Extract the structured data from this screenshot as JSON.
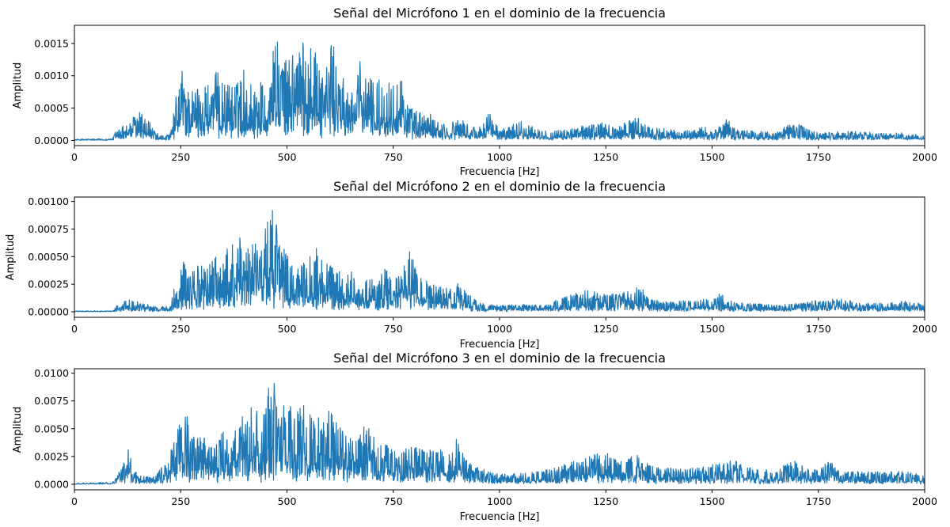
{
  "colors": {
    "line": "#1f77b4",
    "axes": "#000000",
    "background": "#ffffff"
  },
  "chart_data": [
    {
      "type": "line",
      "title": "Señal del Micrófono 1 en el dominio de la frecuencia",
      "xlabel": "Frecuencia [Hz]",
      "ylabel": "Amplitud",
      "xlim": [
        0,
        2000
      ],
      "ylim": [
        -8e-05,
        0.00178
      ],
      "grid": false,
      "x_ticks": [
        0,
        250,
        500,
        750,
        1000,
        1250,
        1500,
        1750,
        2000
      ],
      "x_tick_labels": [
        "0",
        "250",
        "500",
        "750",
        "1000",
        "1250",
        "1500",
        "1750",
        "2000"
      ],
      "y_ticks": [
        0,
        0.0005,
        0.001,
        0.0015
      ],
      "y_tick_labels": [
        "0.0000",
        "0.0005",
        "0.0010",
        "0.0015"
      ],
      "envelope": {
        "x": [
          0,
          90,
          100,
          130,
          150,
          175,
          200,
          225,
          240,
          255,
          265,
          290,
          310,
          335,
          360,
          385,
          400,
          420,
          440,
          460,
          480,
          500,
          520,
          545,
          565,
          585,
          605,
          625,
          645,
          665,
          690,
          705,
          725,
          745,
          765,
          785,
          800,
          835,
          850,
          880,
          900,
          930,
          950,
          975,
          1000,
          1050,
          1100,
          1150,
          1200,
          1250,
          1275,
          1320,
          1350,
          1400,
          1450,
          1480,
          1500,
          1535,
          1560,
          1600,
          1650,
          1690,
          1720,
          1750,
          1800,
          1850,
          1900,
          1950,
          2000
        ],
        "y": [
          2e-05,
          3e-05,
          0.0002,
          0.0003,
          0.00047,
          0.0003,
          7e-05,
          0.0001,
          0.00072,
          0.0012,
          0.0008,
          0.00085,
          0.0009,
          0.00108,
          0.00088,
          0.0009,
          0.00115,
          0.0008,
          0.00095,
          0.0014,
          0.00155,
          0.0012,
          0.00158,
          0.00165,
          0.00152,
          0.00118,
          0.00158,
          0.00108,
          0.0008,
          0.00128,
          0.00105,
          0.00093,
          0.00098,
          0.00095,
          0.0011,
          0.00055,
          0.00047,
          0.00042,
          0.00035,
          0.00022,
          0.00038,
          0.00025,
          0.00018,
          0.0005,
          0.00015,
          0.00032,
          0.00015,
          0.00016,
          0.00025,
          0.00028,
          0.0002,
          0.00038,
          0.00022,
          0.00017,
          0.00015,
          0.00025,
          0.00012,
          0.00035,
          0.00016,
          0.00015,
          0.00012,
          0.0003,
          0.0002,
          0.00012,
          0.00014,
          0.00014,
          0.00011,
          0.00012,
          8e-05
        ]
      }
    },
    {
      "type": "line",
      "title": "Señal del Micrófono 2 en el dominio de la frecuencia",
      "xlabel": "Frecuencia [Hz]",
      "ylabel": "Amplitud",
      "xlim": [
        0,
        2000
      ],
      "ylim": [
        -5e-05,
        0.00104
      ],
      "grid": false,
      "x_ticks": [
        0,
        250,
        500,
        750,
        1000,
        1250,
        1500,
        1750,
        2000
      ],
      "x_tick_labels": [
        "0",
        "250",
        "500",
        "750",
        "1000",
        "1250",
        "1500",
        "1750",
        "2000"
      ],
      "y_ticks": [
        0,
        0.00025,
        0.0005,
        0.00075,
        0.001
      ],
      "y_tick_labels": [
        "0.00000",
        "0.00025",
        "0.00050",
        "0.00075",
        "0.00100"
      ],
      "envelope": {
        "x": [
          0,
          90,
          100,
          130,
          150,
          175,
          200,
          225,
          240,
          255,
          270,
          290,
          310,
          330,
          350,
          370,
          385,
          400,
          420,
          440,
          460,
          470,
          490,
          510,
          530,
          550,
          570,
          590,
          610,
          630,
          650,
          670,
          690,
          710,
          730,
          750,
          770,
          790,
          810,
          830,
          850,
          880,
          900,
          930,
          950,
          980,
          1000,
          1050,
          1100,
          1150,
          1200,
          1250,
          1300,
          1330,
          1350,
          1400,
          1450,
          1500,
          1520,
          1550,
          1600,
          1650,
          1700,
          1750,
          1800,
          1850,
          1900,
          1950,
          2000
        ],
        "y": [
          8e-06,
          1e-05,
          6e-05,
          0.00012,
          9e-05,
          7e-05,
          4e-05,
          7e-05,
          0.0003,
          0.00052,
          0.00032,
          0.00045,
          0.00042,
          0.0005,
          0.00055,
          0.0006,
          0.00082,
          0.0006,
          0.0007,
          0.00058,
          0.001,
          0.00098,
          0.00062,
          0.00045,
          0.00042,
          0.00048,
          0.00058,
          0.00045,
          0.0004,
          0.00035,
          0.00042,
          0.00022,
          0.0003,
          0.0003,
          0.0004,
          0.00028,
          0.00036,
          0.0006,
          0.00036,
          0.00028,
          0.00024,
          0.00022,
          0.00026,
          0.00016,
          8e-05,
          7e-05,
          6e-05,
          7e-05,
          6e-05,
          0.00013,
          0.0002,
          0.00016,
          0.00018,
          0.00026,
          0.00012,
          9e-05,
          0.00011,
          0.00012,
          0.00018,
          9e-05,
          8e-05,
          6e-05,
          8e-05,
          0.00011,
          0.00012,
          8e-05,
          8e-05,
          0.0001,
          8e-05
        ]
      }
    },
    {
      "type": "line",
      "title": "Señal del Micrófono 3 en el dominio de la frecuencia",
      "xlabel": "Frecuencia [Hz]",
      "ylabel": "Amplitud",
      "xlim": [
        0,
        2000
      ],
      "ylim": [
        -0.0005,
        0.0104
      ],
      "grid": false,
      "x_ticks": [
        0,
        250,
        500,
        750,
        1000,
        1250,
        1500,
        1750,
        2000
      ],
      "x_tick_labels": [
        "0",
        "250",
        "500",
        "750",
        "1000",
        "1250",
        "1500",
        "1750",
        "2000"
      ],
      "y_ticks": [
        0,
        0.0025,
        0.005,
        0.0075,
        0.01
      ],
      "y_tick_labels": [
        "0.0000",
        "0.0025",
        "0.0050",
        "0.0075",
        "0.0100"
      ],
      "envelope": {
        "x": [
          0,
          90,
          110,
          130,
          140,
          160,
          180,
          210,
          230,
          250,
          260,
          275,
          290,
          310,
          330,
          350,
          370,
          390,
          400,
          420,
          440,
          460,
          470,
          480,
          500,
          520,
          540,
          560,
          580,
          600,
          620,
          640,
          660,
          680,
          700,
          720,
          740,
          760,
          780,
          800,
          820,
          840,
          860,
          880,
          900,
          920,
          950,
          1000,
          1050,
          1100,
          1150,
          1200,
          1250,
          1280,
          1320,
          1350,
          1400,
          1450,
          1500,
          1550,
          1600,
          1650,
          1690,
          1720,
          1750,
          1780,
          1800,
          1850,
          1900,
          1950,
          2000
        ],
        "y": [
          0.0001,
          0.0002,
          0.0015,
          0.0035,
          0.0012,
          0.0008,
          0.0006,
          0.0018,
          0.0035,
          0.006,
          0.0072,
          0.0042,
          0.0045,
          0.0045,
          0.0035,
          0.0048,
          0.0035,
          0.0082,
          0.0052,
          0.0075,
          0.0058,
          0.01,
          0.0095,
          0.0065,
          0.0078,
          0.0063,
          0.0075,
          0.0068,
          0.0058,
          0.0068,
          0.0055,
          0.0045,
          0.0038,
          0.006,
          0.0045,
          0.0035,
          0.0038,
          0.0028,
          0.0033,
          0.0035,
          0.0035,
          0.003,
          0.0035,
          0.0032,
          0.0042,
          0.0025,
          0.0015,
          0.0009,
          0.001,
          0.0012,
          0.0018,
          0.0025,
          0.0029,
          0.002,
          0.0028,
          0.0018,
          0.0015,
          0.0015,
          0.0018,
          0.0022,
          0.0014,
          0.0013,
          0.0022,
          0.0015,
          0.0014,
          0.0022,
          0.0012,
          0.0012,
          0.0011,
          0.0012,
          0.0008
        ]
      }
    }
  ]
}
